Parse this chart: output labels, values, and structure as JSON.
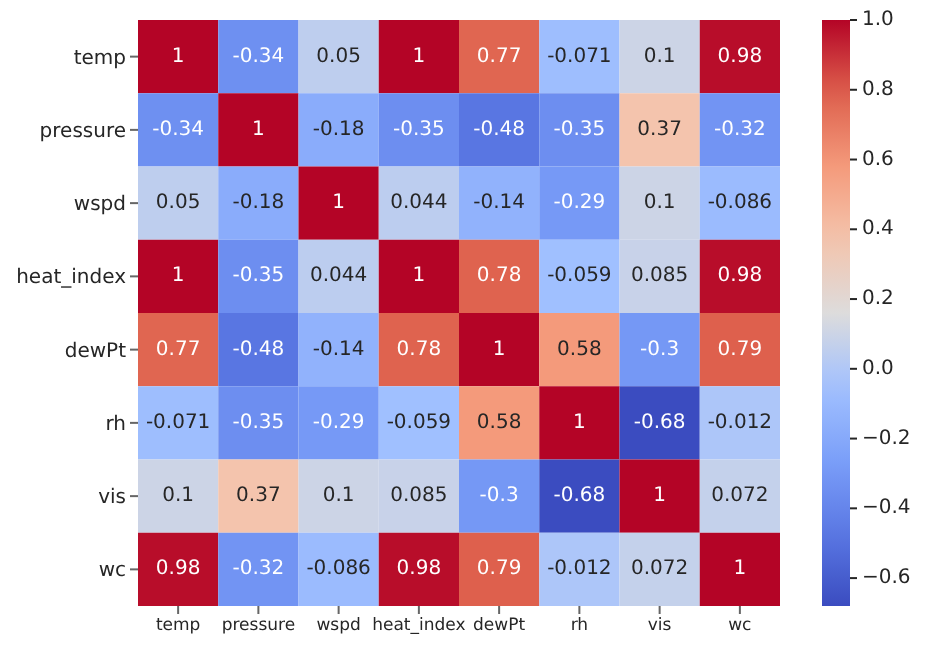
{
  "chart_data": {
    "type": "heatmap",
    "categories": [
      "temp",
      "pressure",
      "wspd",
      "heat_index",
      "dewPt",
      "rh",
      "vis",
      "wc"
    ],
    "y_categories": [
      "temp",
      "pressure",
      "wspd",
      "heat_index",
      "dewPt",
      "rh",
      "vis",
      "wc"
    ],
    "cells": [
      [
        1,
        -0.34,
        0.05,
        1,
        0.77,
        -0.071,
        0.1,
        0.98
      ],
      [
        -0.34,
        1,
        -0.18,
        -0.35,
        -0.48,
        -0.35,
        0.37,
        -0.32
      ],
      [
        0.05,
        -0.18,
        1,
        0.044,
        -0.14,
        -0.29,
        0.1,
        -0.086
      ],
      [
        1,
        -0.35,
        0.044,
        1,
        0.78,
        -0.059,
        0.085,
        0.98
      ],
      [
        0.77,
        -0.48,
        -0.14,
        0.78,
        1,
        0.58,
        -0.3,
        0.79
      ],
      [
        -0.071,
        -0.35,
        -0.29,
        -0.059,
        0.58,
        1,
        -0.68,
        -0.012
      ],
      [
        0.1,
        0.37,
        0.1,
        0.085,
        -0.3,
        -0.68,
        1,
        0.072
      ],
      [
        0.98,
        -0.32,
        -0.086,
        0.98,
        0.79,
        -0.012,
        0.072,
        1
      ]
    ],
    "data_labels": true,
    "clim": [
      -0.68,
      1.0
    ],
    "cticks": [
      {
        "value": 1.0,
        "label": "1.0"
      },
      {
        "value": 0.8,
        "label": "0.8"
      },
      {
        "value": 0.6,
        "label": "0.6"
      },
      {
        "value": 0.4,
        "label": "0.4"
      },
      {
        "value": 0.2,
        "label": "0.2"
      },
      {
        "value": 0.0,
        "label": "0.0"
      },
      {
        "value": -0.2,
        "label": "−0.2"
      },
      {
        "value": -0.4,
        "label": "−0.4"
      },
      {
        "value": -0.6,
        "label": "−0.6"
      }
    ]
  }
}
